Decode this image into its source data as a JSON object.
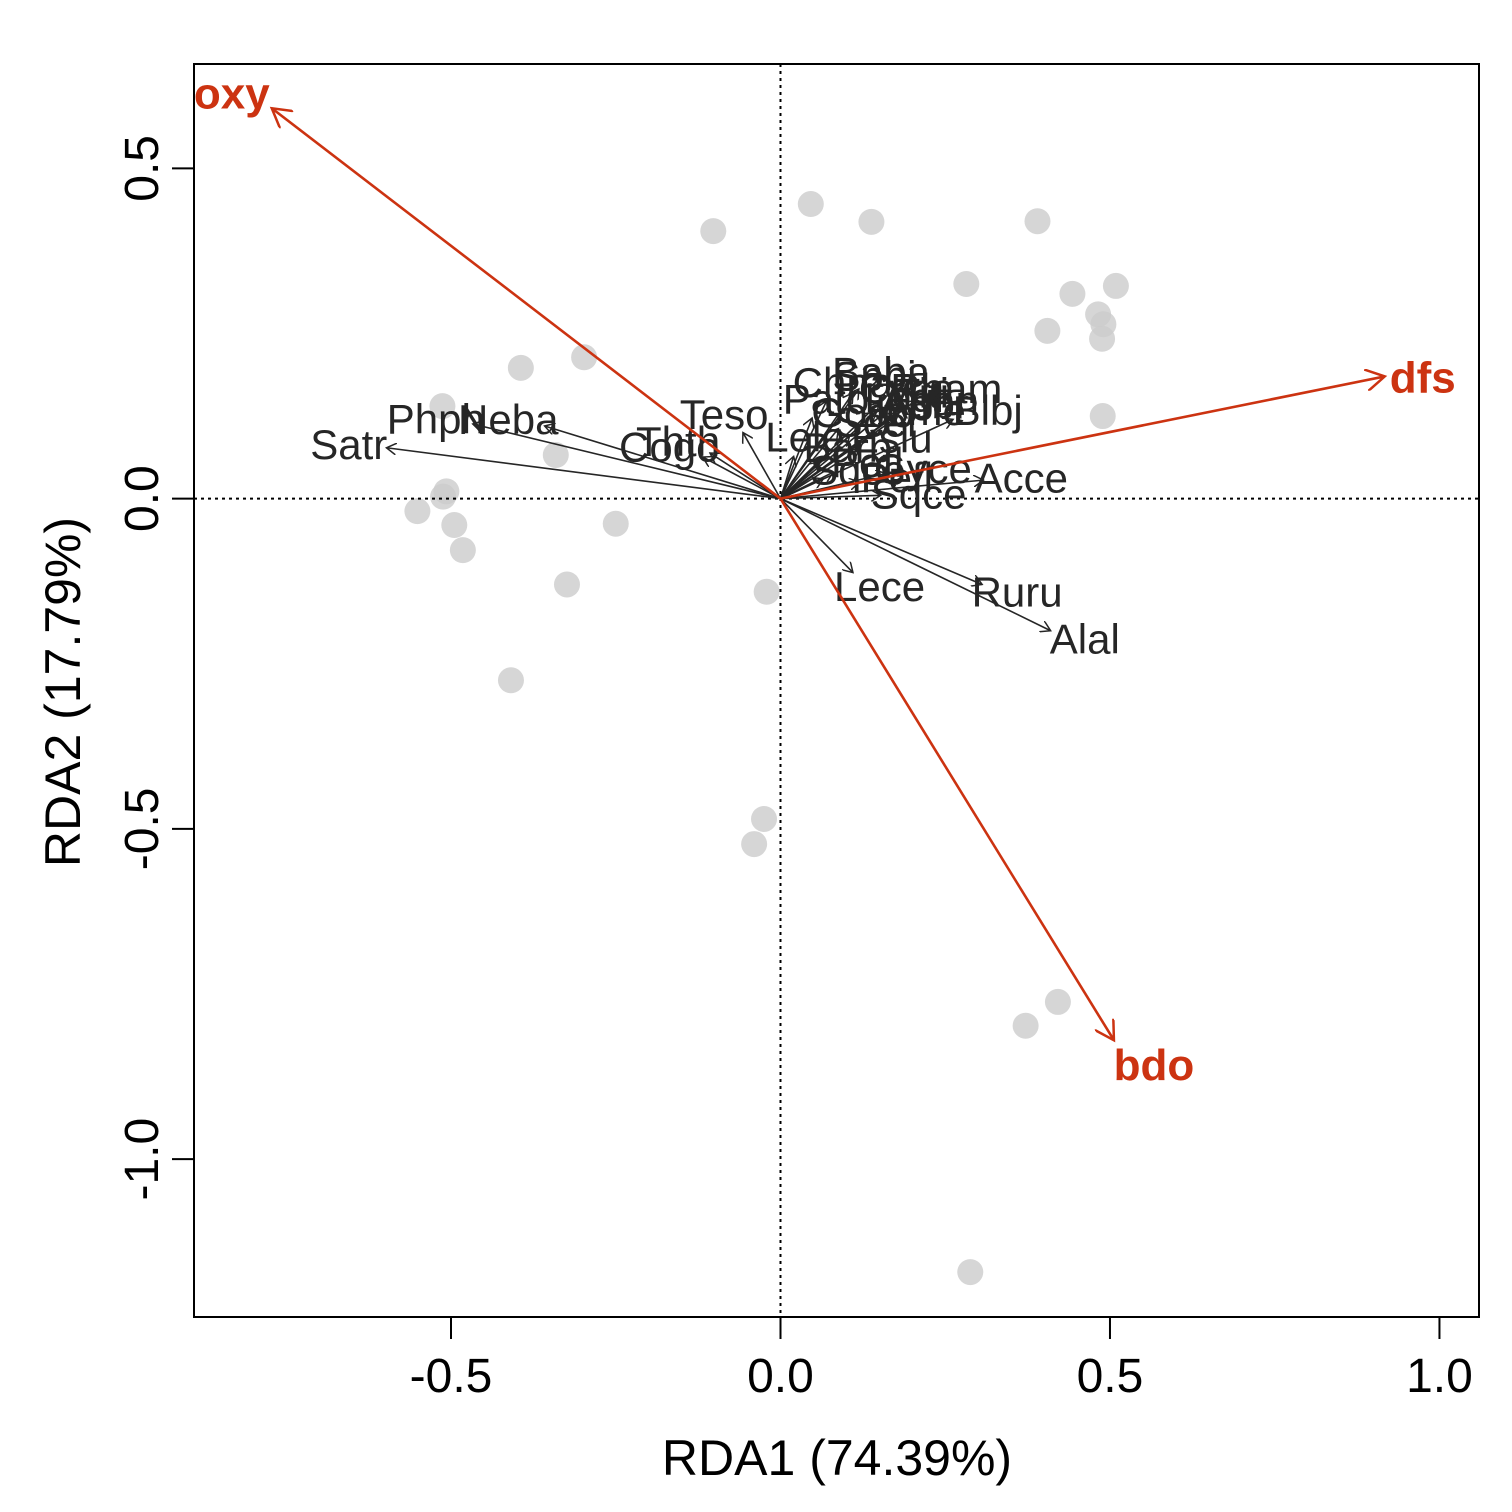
{
  "chart_data": {
    "type": "scatter",
    "xlabel": "RDA1 (74.39%)",
    "ylabel": "RDA2 (17.79%)",
    "xlim": [
      -0.89,
      1.06
    ],
    "ylim": [
      -1.239,
      0.658
    ],
    "x_ticks": [
      -0.5,
      0.0,
      0.5,
      1.0
    ],
    "x_tick_labels": [
      "-0.5",
      "0.0",
      "0.5",
      "1.0"
    ],
    "y_ticks": [
      -1.0,
      -0.5,
      0.0,
      0.5
    ],
    "y_tick_labels": [
      "-1.0",
      "-0.5",
      "0.0",
      "0.5"
    ],
    "reference_lines": {
      "x": 0,
      "y": 0,
      "style": "dotted"
    },
    "colors": {
      "sites": "#cccccc",
      "species": "#262626",
      "environment": "#cc3311",
      "frame": "#000000"
    },
    "sites": [
      [
        0.046,
        0.446
      ],
      [
        0.138,
        0.419
      ],
      [
        -0.102,
        0.405
      ],
      [
        0.39,
        0.42
      ],
      [
        0.282,
        0.325
      ],
      [
        0.443,
        0.31
      ],
      [
        0.509,
        0.322
      ],
      [
        0.482,
        0.279
      ],
      [
        0.49,
        0.264
      ],
      [
        0.405,
        0.254
      ],
      [
        0.488,
        0.242
      ],
      [
        -0.298,
        0.214
      ],
      [
        -0.394,
        0.198
      ],
      [
        -0.513,
        0.14
      ],
      [
        0.489,
        0.125
      ],
      [
        -0.341,
        0.066
      ],
      [
        -0.507,
        0.011
      ],
      [
        -0.512,
        0.003
      ],
      [
        -0.551,
        -0.019
      ],
      [
        -0.495,
        -0.04
      ],
      [
        -0.25,
        -0.038
      ],
      [
        -0.482,
        -0.078
      ],
      [
        -0.324,
        -0.13
      ],
      [
        -0.021,
        -0.141
      ],
      [
        -0.409,
        -0.275
      ],
      [
        -0.025,
        -0.485
      ],
      [
        -0.04,
        -0.523
      ],
      [
        0.421,
        -0.762
      ],
      [
        0.372,
        -0.798
      ],
      [
        0.288,
        -1.171
      ]
    ],
    "species": [
      {
        "label": "Satr",
        "x": -0.598,
        "y": 0.077
      },
      {
        "label": "Phph",
        "x": -0.467,
        "y": 0.113
      },
      {
        "label": "Neba",
        "x": -0.358,
        "y": 0.11
      },
      {
        "label": "Cogo",
        "x": -0.118,
        "y": 0.063
      },
      {
        "label": "Thth",
        "x": -0.107,
        "y": 0.069
      },
      {
        "label": "Teso",
        "x": -0.057,
        "y": 0.1
      },
      {
        "label": "Baba",
        "x": 0.119,
        "y": 0.166
      },
      {
        "label": "Chna",
        "x": 0.07,
        "y": 0.148
      },
      {
        "label": "Spbi",
        "x": 0.11,
        "y": 0.16
      },
      {
        "label": "Rham",
        "x": 0.205,
        "y": 0.148
      },
      {
        "label": "Pato",
        "x": 0.048,
        "y": 0.122
      },
      {
        "label": "Legi",
        "x": 0.145,
        "y": 0.132
      },
      {
        "label": "Titi",
        "x": 0.17,
        "y": 0.14
      },
      {
        "label": "Abbr",
        "x": 0.172,
        "y": 0.125
      },
      {
        "label": "Icme",
        "x": 0.165,
        "y": 0.115
      },
      {
        "label": "Blbj",
        "x": 0.262,
        "y": 0.12
      },
      {
        "label": "Cyca",
        "x": 0.15,
        "y": 0.145
      },
      {
        "label": "Anan",
        "x": 0.18,
        "y": 0.13
      },
      {
        "label": "Gogo",
        "x": 0.088,
        "y": 0.106
      },
      {
        "label": "Scer",
        "x": 0.105,
        "y": 0.095
      },
      {
        "label": "Eslu",
        "x": 0.12,
        "y": 0.075
      },
      {
        "label": "Lele",
        "x": 0.02,
        "y": 0.064
      },
      {
        "label": "Barb",
        "x": 0.06,
        "y": 0.056
      },
      {
        "label": "Pefl",
        "x": 0.08,
        "y": 0.04
      },
      {
        "label": "Gyce",
        "x": 0.16,
        "y": 0.038
      },
      {
        "label": "Sqce",
        "x": 0.065,
        "y": 0.03
      },
      {
        "label": "Pefl",
        "x": 0.12,
        "y": 0.025
      },
      {
        "label": "Sqce",
        "x": 0.152,
        "y": 0.005
      },
      {
        "label": "Acce",
        "x": 0.308,
        "y": 0.028
      },
      {
        "label": "Lece",
        "x": 0.11,
        "y": -0.112
      },
      {
        "label": "Ruru",
        "x": 0.306,
        "y": -0.13
      },
      {
        "label": "Alal",
        "x": 0.41,
        "y": -0.2
      }
    ],
    "environment": [
      {
        "label": "oxy",
        "x": -0.772,
        "y": 0.591
      },
      {
        "label": "dfs",
        "x": 0.917,
        "y": 0.185
      },
      {
        "label": "bdo",
        "x": 0.506,
        "y": -0.82
      }
    ]
  }
}
